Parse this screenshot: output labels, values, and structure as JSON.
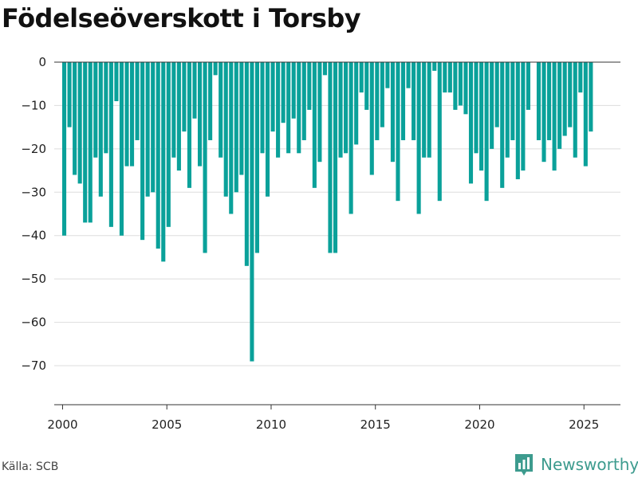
{
  "chart_data": {
    "type": "bar",
    "title": "Födelseöverskott i Torsby",
    "xlabel": "",
    "ylabel": "",
    "xlim": [
      1999.6,
      2026.75
    ],
    "ylim": [
      -79,
      0
    ],
    "x_ticks": [
      2000,
      2005,
      2010,
      2015,
      2020,
      2025
    ],
    "x_tick_labels": [
      "2000",
      "2005",
      "2010",
      "2015",
      "2020",
      "2025"
    ],
    "y_ticks": [
      0,
      -10,
      -20,
      -30,
      -40,
      -50,
      -60,
      -70
    ],
    "y_tick_labels": [
      "0",
      "−10",
      "−20",
      "−30",
      "−40",
      "−50",
      "−60",
      "−70"
    ],
    "grid": true,
    "bar_color": "#0aa19a",
    "series": [
      {
        "x": [
          2000.08,
          2000.33,
          2000.58,
          2000.83,
          2001.08,
          2001.33,
          2001.58,
          2001.83,
          2002.08,
          2002.33,
          2002.58,
          2002.83,
          2003.08,
          2003.33,
          2003.58,
          2003.83,
          2004.08,
          2004.33,
          2004.58,
          2004.83,
          2005.08,
          2005.33,
          2005.58,
          2005.83,
          2006.08,
          2006.33,
          2006.58,
          2006.83,
          2007.08,
          2007.33,
          2007.58,
          2007.83,
          2008.08,
          2008.33,
          2008.58,
          2008.83,
          2009.08,
          2009.33,
          2009.58,
          2009.83,
          2010.08,
          2010.33,
          2010.58,
          2010.83,
          2011.08,
          2011.33,
          2011.58,
          2011.83,
          2012.08,
          2012.33,
          2012.58,
          2012.83,
          2013.08,
          2013.33,
          2013.58,
          2013.83,
          2014.08,
          2014.33,
          2014.58,
          2014.83,
          2015.08,
          2015.33,
          2015.58,
          2015.83,
          2016.08,
          2016.33,
          2016.58,
          2016.83,
          2017.08,
          2017.33,
          2017.58,
          2017.83,
          2018.08,
          2018.33,
          2018.58,
          2018.83,
          2019.08,
          2019.33,
          2019.58,
          2019.83,
          2020.08,
          2020.33,
          2020.58,
          2020.83,
          2021.08,
          2021.33,
          2021.58,
          2021.83,
          2022.08,
          2022.33,
          2022.58,
          2022.83,
          2023.08,
          2023.33,
          2023.58,
          2023.83,
          2024.08,
          2024.33,
          2024.58,
          2024.83,
          2025.08,
          2025.33
        ],
        "values": [
          -40,
          -15,
          -26,
          -28,
          -37,
          -37,
          -22,
          -31,
          -21,
          -38,
          -9,
          -40,
          -24,
          -24,
          -18,
          -41,
          -31,
          -30,
          -43,
          -46,
          -38,
          -22,
          -25,
          -16,
          -29,
          -13,
          -24,
          -44,
          -18,
          -3,
          -22,
          -31,
          -35,
          -30,
          -26,
          -47,
          -69,
          -44,
          -21,
          -31,
          -16,
          -22,
          -14,
          -21,
          -13,
          -21,
          -18,
          -11,
          -29,
          -23,
          -3,
          -44,
          -44,
          -22,
          -21,
          -35,
          -19,
          -7,
          -11,
          -26,
          -18,
          -15,
          -6,
          -23,
          -32,
          -18,
          -6,
          -18,
          -35,
          -22,
          -22,
          -2,
          -32,
          -7,
          -7,
          -11,
          -10,
          -12,
          -28,
          -21,
          -25,
          -32,
          -20,
          -15,
          -29,
          -22,
          -18,
          -27,
          -25,
          -11,
          0,
          -18,
          -23,
          -18,
          -25,
          -20,
          -17,
          -15,
          -22,
          -7,
          -24,
          -16
        ]
      }
    ]
  },
  "source": "Källa: SCB",
  "brand": {
    "name": "Newsworthy",
    "logo_icon": "bar-chart-logo-icon",
    "color": "#3d9b8e"
  }
}
